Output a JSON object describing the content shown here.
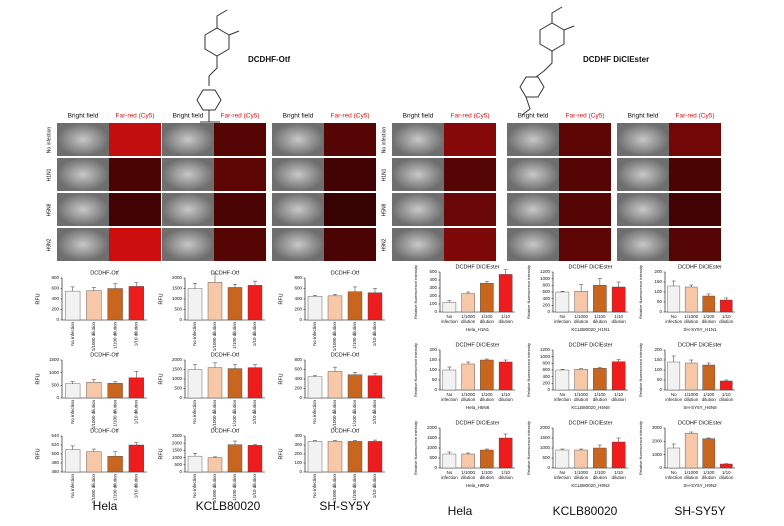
{
  "compounds": [
    "DCDHF-Otf",
    "DCDHF DiClEster"
  ],
  "image_headers": [
    "Bright field",
    "Far-red (Cy5)"
  ],
  "image_rows": [
    "No infection",
    "H1N1",
    "H5N8",
    "H9N2"
  ],
  "cell_lines": [
    "Hela",
    "KCLB80020",
    "SH-SY5Y"
  ],
  "chart_data": [
    {
      "type": "bar",
      "title": "DCDHF-Otf",
      "y_label": "RFU",
      "categories": [
        "No infection",
        "1/1000 dilution",
        "1/100 dilution",
        "1/10 dilution"
      ],
      "colors": [
        "#f2f2f2",
        "#f7c8a8",
        "#c8651e",
        "#ee1c1c"
      ],
      "values": [
        550,
        560,
        600,
        640
      ],
      "errors": [
        80,
        60,
        90,
        70
      ],
      "ylim": [
        0,
        800
      ],
      "yticks": [
        0,
        200,
        400,
        600,
        800
      ]
    },
    {
      "type": "bar",
      "title": "DCDHF-Otf",
      "y_label": "RFU",
      "categories": [
        "No infection",
        "1/1000 dilution",
        "1/100 dilution",
        "1/10 dilution"
      ],
      "colors": [
        "#f2f2f2",
        "#f7c8a8",
        "#c8651e",
        "#ee1c1c"
      ],
      "values": [
        1500,
        1800,
        1550,
        1650
      ],
      "errors": [
        250,
        400,
        150,
        200
      ],
      "ylim": [
        0,
        2000
      ],
      "yticks": [
        0,
        500,
        1000,
        1500,
        2000
      ]
    },
    {
      "type": "bar",
      "title": "DCDHF-Otf",
      "y_label": "RFU",
      "categories": [
        "No infection",
        "1/1000 dilution",
        "1/100 dilution",
        "1/10 dilution"
      ],
      "colors": [
        "#f2f2f2",
        "#f7c8a8",
        "#c8651e",
        "#ee1c1c"
      ],
      "values": [
        450,
        460,
        540,
        520
      ],
      "errors": [
        20,
        30,
        90,
        80
      ],
      "ylim": [
        0,
        800
      ],
      "yticks": [
        0,
        200,
        400,
        600,
        800
      ]
    },
    {
      "type": "bar",
      "title": "DCDHF-Otf",
      "y_label": "RFU",
      "categories": [
        "No infection",
        "1/1000 dilution",
        "1/100 dilution",
        "1/10 dilution"
      ],
      "colors": [
        "#f2f2f2",
        "#f7c8a8",
        "#c8651e",
        "#ee1c1c"
      ],
      "values": [
        560,
        620,
        580,
        800
      ],
      "errors": [
        90,
        100,
        60,
        250
      ],
      "ylim": [
        0,
        1500
      ],
      "yticks": [
        0,
        500,
        1000,
        1500
      ]
    },
    {
      "type": "bar",
      "title": "DCDHF-Otf",
      "y_label": "RFU",
      "categories": [
        "No infection",
        "1/1000 dilution",
        "1/100 dilution",
        "1/10 dilution"
      ],
      "colors": [
        "#f2f2f2",
        "#f7c8a8",
        "#c8651e",
        "#ee1c1c"
      ],
      "values": [
        1500,
        1600,
        1550,
        1600
      ],
      "errors": [
        250,
        250,
        200,
        150
      ],
      "ylim": [
        0,
        2000
      ],
      "yticks": [
        0,
        500,
        1000,
        1500,
        2000
      ]
    },
    {
      "type": "bar",
      "title": "DCDHF-Otf",
      "y_label": "RFU",
      "categories": [
        "No infection",
        "1/1000 dilution",
        "1/100 dilution",
        "1/10 dilution"
      ],
      "colors": [
        "#f2f2f2",
        "#f7c8a8",
        "#c8651e",
        "#ee1c1c"
      ],
      "values": [
        450,
        560,
        490,
        470
      ],
      "errors": [
        20,
        90,
        50,
        40
      ],
      "ylim": [
        0,
        800
      ],
      "yticks": [
        0,
        200,
        400,
        600,
        800
      ]
    },
    {
      "type": "bar",
      "title": "DCDHF-Otf",
      "y_label": "RFU",
      "categories": [
        "No infection",
        "1/1000 dilution",
        "1/100 dilution",
        "1/10 dilution"
      ],
      "colors": [
        "#f2f2f2",
        "#f7c8a8",
        "#c8651e",
        "#ee1c1c"
      ],
      "values": [
        510,
        505,
        495,
        520
      ],
      "errors": [
        8,
        6,
        10,
        5
      ],
      "ylim": [
        460,
        540
      ],
      "yticks": [
        460,
        480,
        500,
        520,
        540
      ]
    },
    {
      "type": "bar",
      "title": "DCDHF-Otf",
      "y_label": "RFU",
      "categories": [
        "No infection",
        "1/1000 dilution",
        "1/100 dilution",
        "1/10 dilution"
      ],
      "colors": [
        "#f2f2f2",
        "#f7c8a8",
        "#c8651e",
        "#ee1c1c"
      ],
      "values": [
        1100,
        1000,
        1900,
        1850
      ],
      "errors": [
        200,
        50,
        250,
        50
      ],
      "ylim": [
        0,
        2500
      ],
      "yticks": [
        0,
        500,
        1000,
        1500,
        2000,
        2500
      ]
    },
    {
      "type": "bar",
      "title": "DCDHF-Otf",
      "y_label": "RFU",
      "categories": [
        "No infection",
        "1/1000 dilution",
        "1/100 dilution",
        "1/10 dilution"
      ],
      "colors": [
        "#f2f2f2",
        "#f7c8a8",
        "#c8651e",
        "#ee1c1c"
      ],
      "values": [
        340,
        340,
        340,
        340
      ],
      "errors": [
        10,
        10,
        10,
        15
      ],
      "ylim": [
        0,
        400
      ],
      "yticks": [
        0,
        100,
        200,
        300,
        400
      ]
    },
    {
      "type": "bar",
      "title": "DCDHF DiClEster",
      "subtitle": "Hela_H1N1",
      "y_label": "Relative fluorescence intensity",
      "categories": [
        "No infection",
        "1/1000 dilution",
        "1/100 dilution",
        "1/10 dilution"
      ],
      "colors": [
        "#f2f2f2",
        "#f7c8a8",
        "#c8651e",
        "#ee1c1c"
      ],
      "values": [
        120,
        230,
        360,
        470
      ],
      "errors": [
        20,
        20,
        20,
        60
      ],
      "ylim": [
        0,
        500
      ],
      "yticks": [
        0,
        100,
        200,
        300,
        400,
        500
      ]
    },
    {
      "type": "bar",
      "title": "DCDHF DiClEster",
      "subtitle": "KCLB80020_H1N1",
      "y_label": "Relative fluorescence intensity",
      "categories": [
        "No infection",
        "1/1000 dilution",
        "1/100 dilution",
        "1/10 dilution"
      ],
      "colors": [
        "#f2f2f2",
        "#f7c8a8",
        "#c8651e",
        "#ee1c1c"
      ],
      "values": [
        600,
        620,
        800,
        750
      ],
      "errors": [
        20,
        200,
        200,
        150
      ],
      "ylim": [
        0,
        1200
      ],
      "yticks": [
        0,
        200,
        400,
        600,
        800,
        1000,
        1200
      ]
    },
    {
      "type": "bar",
      "title": "DCDHF DiClEster",
      "subtitle": "SH-SY5Y_H1N1",
      "y_label": "Relative fluorescence intensity",
      "categories": [
        "No infection",
        "1/1000 dilution",
        "1/100 dilution",
        "1/10 dilution"
      ],
      "colors": [
        "#f2f2f2",
        "#f7c8a8",
        "#c8651e",
        "#ee1c1c"
      ],
      "values": [
        130,
        125,
        80,
        60
      ],
      "errors": [
        25,
        10,
        10,
        10
      ],
      "ylim": [
        0,
        200
      ],
      "yticks": [
        0,
        50,
        100,
        150,
        200
      ]
    },
    {
      "type": "bar",
      "title": "DCDHF DiClEster",
      "subtitle": "Hela_H5N8",
      "y_label": "Relative fluorescence intensity",
      "categories": [
        "No infection",
        "1/1000 dilution",
        "1/100 dilution",
        "1/10 dilution"
      ],
      "colors": [
        "#f2f2f2",
        "#f7c8a8",
        "#c8651e",
        "#ee1c1c"
      ],
      "values": [
        100,
        130,
        150,
        140
      ],
      "errors": [
        15,
        10,
        5,
        10
      ],
      "ylim": [
        0,
        200
      ],
      "yticks": [
        0,
        50,
        100,
        150,
        200
      ]
    },
    {
      "type": "bar",
      "title": "DCDHF DiClEster",
      "subtitle": "KCLB80020_H5N8",
      "y_label": "Relative fluorescence intensity",
      "categories": [
        "No infection",
        "1/1000 dilution",
        "1/100 dilution",
        "1/10 dilution"
      ],
      "colors": [
        "#f2f2f2",
        "#f7c8a8",
        "#c8651e",
        "#ee1c1c"
      ],
      "values": [
        600,
        620,
        650,
        850
      ],
      "errors": [
        20,
        20,
        20,
        60
      ],
      "ylim": [
        0,
        1200
      ],
      "yticks": [
        0,
        200,
        400,
        600,
        800,
        1000,
        1200
      ]
    },
    {
      "type": "bar",
      "title": "DCDHF DiClEster",
      "subtitle": "SH-SY5Y_H5N8",
      "y_label": "Relative fluorescence intensity",
      "categories": [
        "No infection",
        "1/1000 dilution",
        "1/100 dilution",
        "1/10 dilution"
      ],
      "colors": [
        "#f2f2f2",
        "#f7c8a8",
        "#c8651e",
        "#ee1c1c"
      ],
      "values": [
        140,
        135,
        125,
        45
      ],
      "errors": [
        30,
        15,
        10,
        5
      ],
      "ylim": [
        0,
        200
      ],
      "yticks": [
        0,
        50,
        100,
        150,
        200
      ]
    },
    {
      "type": "bar",
      "title": "DCDHF DiClEster",
      "subtitle": "Hela_H9N2",
      "y_label": "Relative fluorescence intensity",
      "categories": [
        "No infection",
        "1/1000 dilution",
        "1/100 dilution",
        "1/10 dilution"
      ],
      "colors": [
        "#f2f2f2",
        "#f7c8a8",
        "#c8651e",
        "#ee1c1c"
      ],
      "values": [
        700,
        700,
        900,
        1500
      ],
      "errors": [
        100,
        50,
        50,
        200
      ],
      "ylim": [
        0,
        2000
      ],
      "yticks": [
        0,
        500,
        1000,
        1500,
        2000
      ]
    },
    {
      "type": "bar",
      "title": "DCDHF DiClEster",
      "subtitle": "KCLB80020_H9N2",
      "y_label": "Relative fluorescence intensity",
      "categories": [
        "No infection",
        "1/1000 dilution",
        "1/100 dilution",
        "1/10 dilution"
      ],
      "colors": [
        "#f2f2f2",
        "#f7c8a8",
        "#c8651e",
        "#ee1c1c"
      ],
      "values": [
        900,
        900,
        1000,
        1300
      ],
      "errors": [
        50,
        50,
        150,
        200
      ],
      "ylim": [
        0,
        2000
      ],
      "yticks": [
        0,
        500,
        1000,
        1500,
        2000
      ]
    },
    {
      "type": "bar",
      "title": "DCDHF DiClEster",
      "subtitle": "SH-SY5Y_H9N2",
      "y_label": "Relative fluorescence intensity",
      "categories": [
        "No infection",
        "1/1000 dilution",
        "1/100 dilution",
        "1/10 dilution"
      ],
      "colors": [
        "#f2f2f2",
        "#f7c8a8",
        "#c8651e",
        "#ee1c1c"
      ],
      "values": [
        1500,
        2600,
        2200,
        300
      ],
      "errors": [
        300,
        100,
        50,
        20
      ],
      "ylim": [
        0,
        3000
      ],
      "yticks": [
        0,
        1000,
        2000,
        3000
      ]
    }
  ]
}
